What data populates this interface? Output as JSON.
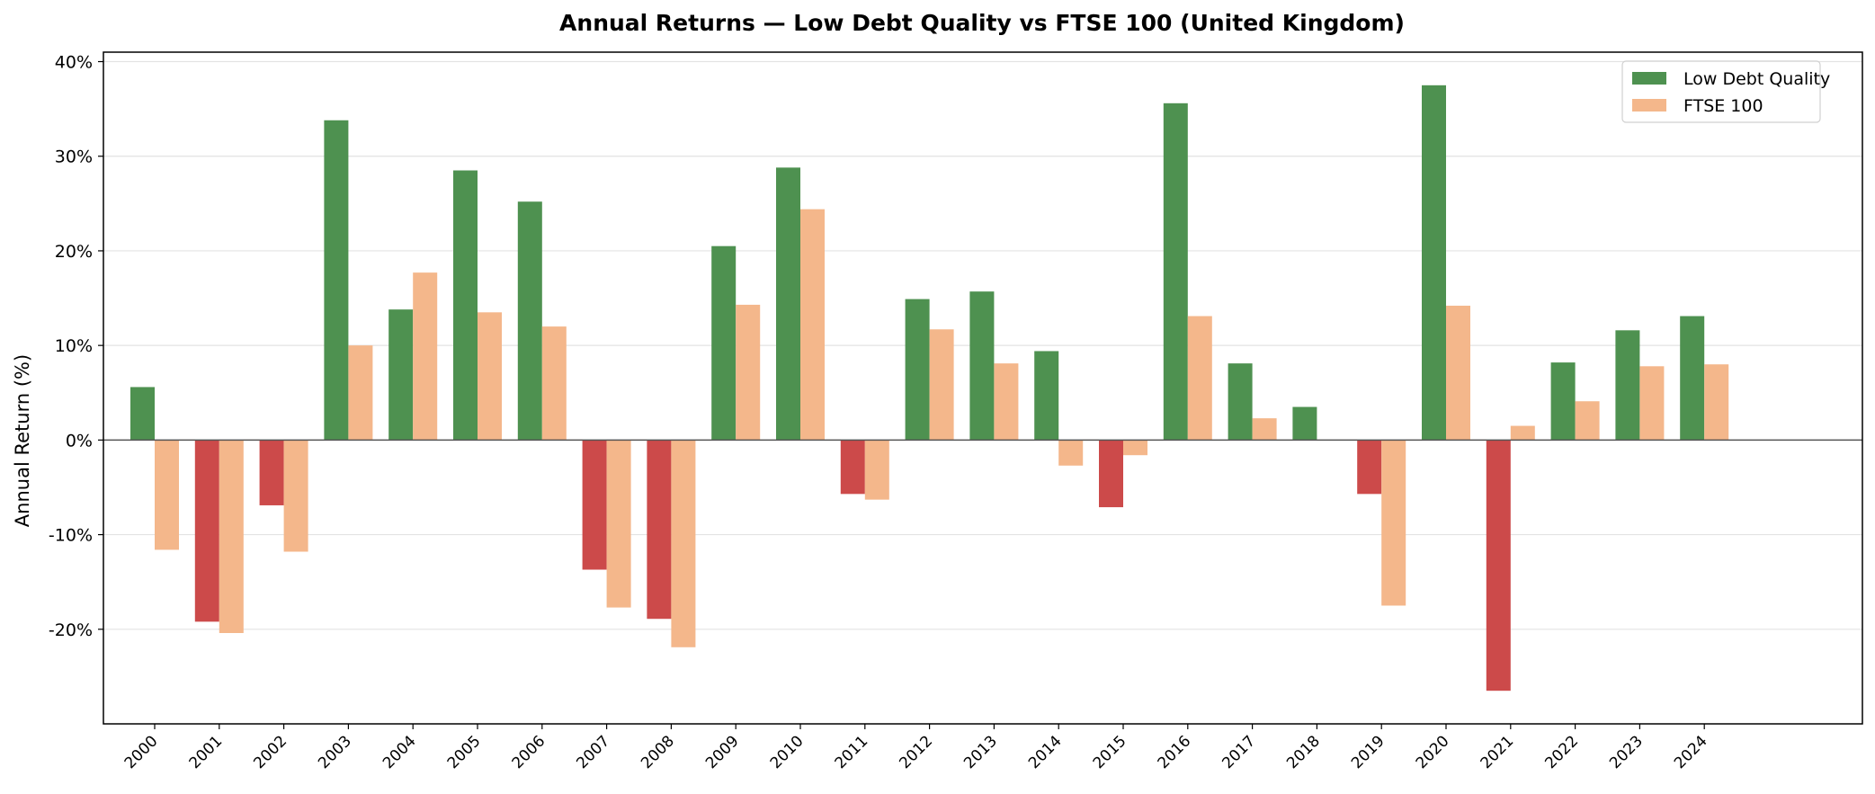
{
  "chart_data": {
    "type": "bar",
    "title": "Annual Returns — Low Debt Quality vs FTSE 100 (United Kingdom)",
    "xlabel": "",
    "ylabel": "Annual Return (%)",
    "ylim": [
      -30,
      41
    ],
    "yticks": [
      -20,
      -10,
      0,
      10,
      20,
      30,
      40
    ],
    "ytick_labels": [
      "-20%",
      "-10%",
      "0%",
      "10%",
      "20%",
      "30%",
      "40%"
    ],
    "grid": "horizontal",
    "legend_position": "top-right",
    "categories": [
      "2000",
      "2001",
      "2002",
      "2003",
      "2004",
      "2005",
      "2006",
      "2007",
      "2008",
      "2009",
      "2010",
      "2011",
      "2012",
      "2013",
      "2014",
      "2015",
      "2016",
      "2017",
      "2018",
      "2019",
      "2020",
      "2021",
      "2022",
      "2023",
      "2024"
    ],
    "series": [
      {
        "name": "Low Debt Quality",
        "color": "#4e9150",
        "negative_color": "#cc4a4a",
        "values": [
          5.6,
          -19.2,
          -6.9,
          33.8,
          13.8,
          28.5,
          25.2,
          -13.7,
          -18.9,
          20.5,
          28.8,
          -5.7,
          14.9,
          15.7,
          9.4,
          -7.1,
          35.6,
          8.1,
          3.5,
          -5.7,
          37.5,
          -26.5,
          8.2,
          11.6,
          13.1
        ]
      },
      {
        "name": "FTSE 100",
        "color": "#f4b78b",
        "values": [
          -11.6,
          -20.4,
          -11.8,
          10.0,
          17.7,
          13.5,
          12.0,
          -17.7,
          -21.9,
          14.3,
          24.4,
          -6.3,
          11.7,
          8.1,
          -2.7,
          -1.6,
          13.1,
          2.3,
          0.0,
          -17.5,
          14.2,
          1.5,
          4.1,
          7.8,
          8.0
        ]
      }
    ]
  }
}
